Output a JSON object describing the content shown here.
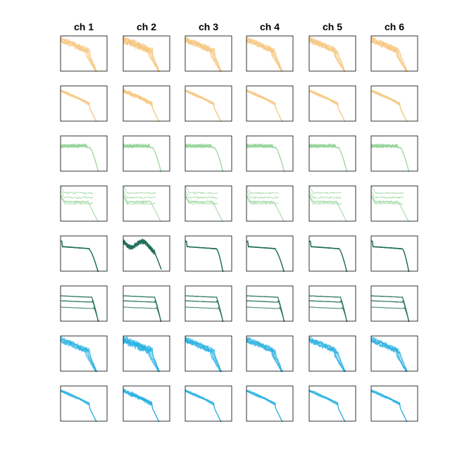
{
  "figure": {
    "columns": [
      "ch 1",
      "ch 2",
      "ch 3",
      "ch 4",
      "ch 5",
      "ch 6"
    ]
  },
  "chart_data": {
    "type": "line",
    "rows": 8,
    "cols": 6,
    "grid": false,
    "axis_ticks": false,
    "column_titles": [
      "ch 1",
      "ch 2",
      "ch 3",
      "ch 4",
      "ch 5",
      "ch 6"
    ],
    "row_colors": [
      "#f6c67d",
      "#f6c67d",
      "#98d49b",
      "#98d49b",
      "#1f6e57",
      "#1f6e57",
      "#28b0e1",
      "#28b0e1"
    ],
    "row_shapes": [
      "noisy-sag",
      "smooth-sag",
      "flat-spiky",
      "flat-offset",
      "plateau",
      "plateau-multi",
      "noisy-sag",
      "smooth-sag"
    ],
    "xlim": [
      0,
      1
    ],
    "ylim": [
      0,
      1
    ],
    "note_values": "Panel content reproduced qualitatively; curves are normalized shapes (no axis values printed)."
  }
}
